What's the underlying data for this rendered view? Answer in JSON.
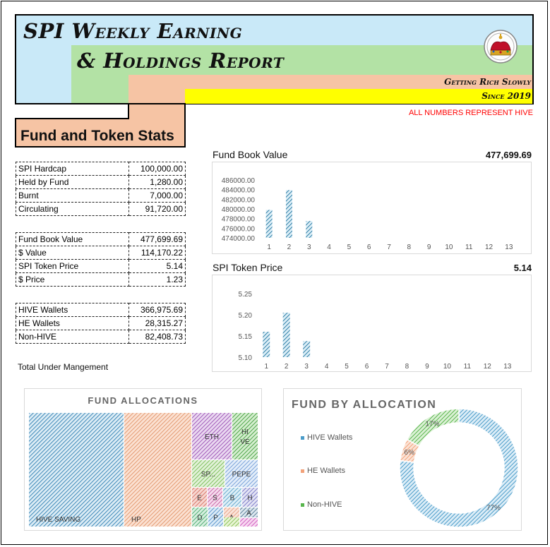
{
  "header": {
    "title_line1": "SPI Weekly Earning",
    "title_line2": "& Holdings Report",
    "tagline": "Getting Rich Slowly",
    "since": "Since 2019",
    "note": "ALL NUMBERS REPRESENT HIVE",
    "section_title": "Fund and Token Stats"
  },
  "colors": {
    "light_blue": "#c9e9f8",
    "light_green": "#b3e2a5",
    "peach": "#f6c4a4",
    "yellow": "#ffff00",
    "note_red": "#ff0000",
    "bar_blue": "#2f7ea6",
    "hive": "#4a9cc9",
    "he": "#f2a27a",
    "nonhive": "#58b54c"
  },
  "stats": {
    "group1": [
      {
        "label": "SPI Hardcap",
        "value": "100,000.00"
      },
      {
        "label": "Held by Fund",
        "value": "1,280.00"
      },
      {
        "label": "Burnt",
        "value": "7,000.00"
      },
      {
        "label": "Circulating",
        "value": "91,720.00"
      }
    ],
    "group2": [
      {
        "label": "Fund Book Value",
        "value": "477,699.69"
      },
      {
        "label": "$ Value",
        "value": "114,170.22"
      },
      {
        "label": "SPI Token Price",
        "value": "5.14"
      },
      {
        "label": "$ Price",
        "value": "1.23"
      }
    ],
    "group3": [
      {
        "label": "HIVE Wallets",
        "value": "366,975.69"
      },
      {
        "label": "HE Wallets",
        "value": "28,315.27"
      },
      {
        "label": "Non-HIVE",
        "value": "82,408.73"
      }
    ],
    "total_label": "Total Under Mangement"
  },
  "chart_data": [
    {
      "type": "bar",
      "title": "Fund Book Value",
      "headline_value": "477,699.69",
      "categories": [
        "1",
        "2",
        "3",
        "4",
        "5",
        "6",
        "7",
        "8",
        "9",
        "10",
        "11",
        "12",
        "13"
      ],
      "values": [
        479800,
        483900,
        477500,
        null,
        null,
        null,
        null,
        null,
        null,
        null,
        null,
        null,
        null
      ],
      "ylim": [
        474000,
        486000
      ],
      "yticks": [
        "486000.00",
        "484000.00",
        "482000.00",
        "480000.00",
        "478000.00",
        "476000.00",
        "474000.00"
      ],
      "ytick_values": [
        486000,
        484000,
        482000,
        480000,
        478000,
        476000,
        474000
      ],
      "grid": false
    },
    {
      "type": "bar",
      "title": "SPI Token Price",
      "headline_value": "5.14",
      "categories": [
        "1",
        "2",
        "3",
        "4",
        "5",
        "6",
        "7",
        "8",
        "9",
        "10",
        "11",
        "12",
        "13"
      ],
      "values": [
        5.16,
        5.205,
        5.138,
        null,
        null,
        null,
        null,
        null,
        null,
        null,
        null,
        null,
        null
      ],
      "ylim": [
        5.1,
        5.25
      ],
      "yticks": [
        "5.25",
        "5.20",
        "5.15",
        "5.10"
      ],
      "ytick_values": [
        5.25,
        5.2,
        5.15,
        5.1
      ],
      "grid": false
    },
    {
      "type": "treemap",
      "title": "FUND ALLOCATIONS",
      "labels": [
        "HIVE SAVING",
        "HP",
        "ETH",
        "HI VE",
        "SP...",
        "PEPE",
        "E",
        "S",
        "B",
        "H",
        "D",
        "P",
        "A",
        "A",
        "...",
        "..."
      ]
    },
    {
      "type": "pie",
      "title": "FUND BY ALLOCATION",
      "legend_position": "left",
      "labels": [
        "HIVE Wallets",
        "HE Wallets",
        "Non-HIVE"
      ],
      "values": [
        77,
        6,
        17
      ],
      "value_labels": [
        "77%",
        "6%",
        "17%"
      ]
    }
  ]
}
